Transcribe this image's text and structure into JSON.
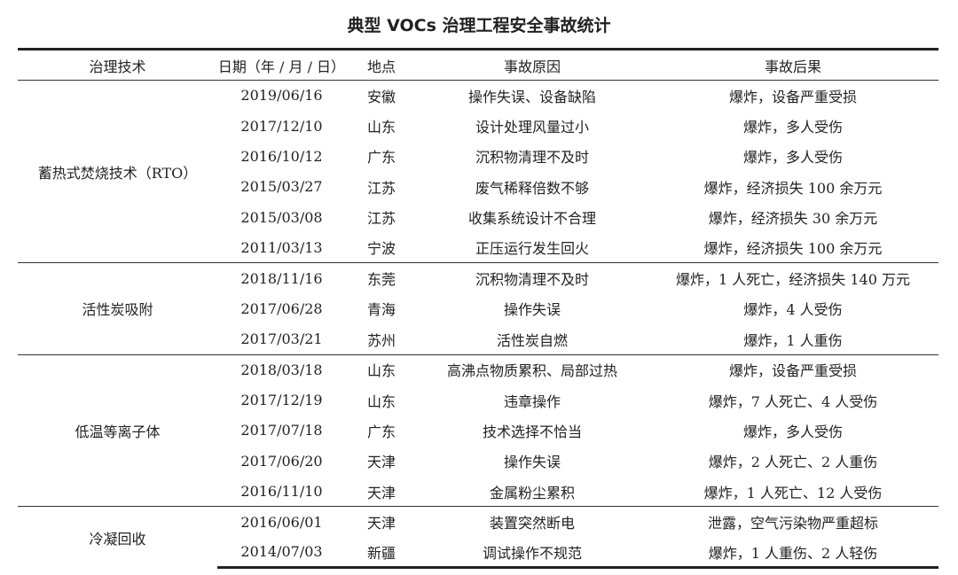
{
  "title": "典型 VOCs 治理工程安全事故统计",
  "headers": [
    "治理技术",
    "日期（年 / 月 / 日）",
    "地点",
    "事故原因",
    "事故后果"
  ],
  "groups": [
    {
      "technology": "蓄热式焚烧技术（RTO）",
      "rows": [
        {
          "date": "2019/06/16",
          "place": "安徽",
          "cause": "操作失误、设备缺陷",
          "result": "爆炸，设备严重受损"
        },
        {
          "date": "2017/12/10",
          "place": "山东",
          "cause": "设计处理风量过小",
          "result": "爆炸，多人受伤"
        },
        {
          "date": "2016/10/12",
          "place": "广东",
          "cause": "沉积物清理不及时",
          "result": "爆炸，多人受伤"
        },
        {
          "date": "2015/03/27",
          "place": "江苏",
          "cause": "废气稀释倍数不够",
          "result": "爆炸，经济损失 100 余万元"
        },
        {
          "date": "2015/03/08",
          "place": "江苏",
          "cause": "收集系统设计不合理",
          "result": "爆炸，经济损失 30 余万元"
        },
        {
          "date": "2011/03/13",
          "place": "宁波",
          "cause": "正压运行发生回火",
          "result": "爆炸，经济损失 100 余万元"
        }
      ]
    },
    {
      "technology": "活性炭吸附",
      "rows": [
        {
          "date": "2018/11/16",
          "place": "东莞",
          "cause": "沉积物清理不及时",
          "result": "爆炸，1 人死亡，经济损失 140 万元"
        },
        {
          "date": "2017/06/28",
          "place": "青海",
          "cause": "操作失误",
          "result": "爆炸，4 人受伤"
        },
        {
          "date": "2017/03/21",
          "place": "苏州",
          "cause": "活性炭自燃",
          "result": "爆炸，1 人重伤"
        }
      ]
    },
    {
      "technology": "低温等离子体",
      "rows": [
        {
          "date": "2018/03/18",
          "place": "山东",
          "cause": "高沸点物质累积、局部过热",
          "result": "爆炸，设备严重受损"
        },
        {
          "date": "2017/12/19",
          "place": "山东",
          "cause": "违章操作",
          "result": "爆炸，7 人死亡、4 人受伤"
        },
        {
          "date": "2017/07/18",
          "place": "广东",
          "cause": "技术选择不恰当",
          "result": "爆炸，多人受伤"
        },
        {
          "date": "2017/06/20",
          "place": "天津",
          "cause": "操作失误",
          "result": "爆炸，2 人死亡、2 人重伤"
        },
        {
          "date": "2016/11/10",
          "place": "天津",
          "cause": "金属粉尘累积",
          "result": "爆炸，1 人死亡、12 人受伤"
        }
      ]
    },
    {
      "technology": "冷凝回收",
      "rows": [
        {
          "date": "2016/06/01",
          "place": "天津",
          "cause": "装置突然断电",
          "result": "泄露，空气污染物严重超标"
        },
        {
          "date": "2014/07/03",
          "place": "新疆",
          "cause": "调试操作不规范",
          "result": "爆炸，1 人重伤、2 人轻伤"
        }
      ]
    }
  ]
}
